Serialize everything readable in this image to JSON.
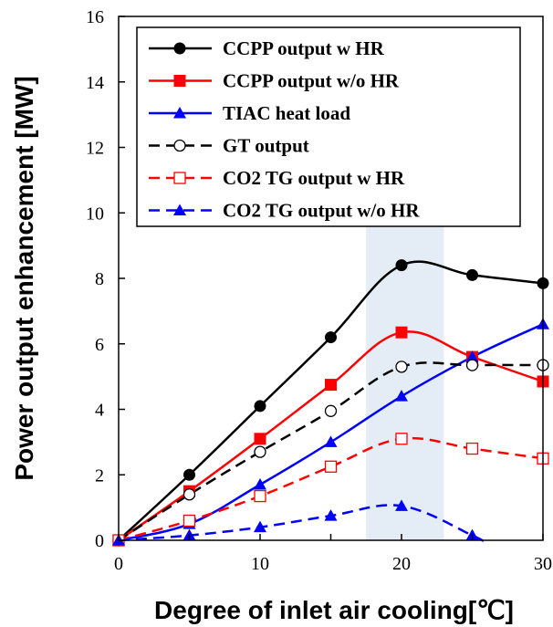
{
  "chart_data": {
    "type": "line",
    "xlabel": "Degree of inlet air cooling[℃]",
    "ylabel": "Power output enhancement [MW]",
    "xlim": [
      0,
      30
    ],
    "ylim": [
      0,
      16
    ],
    "xticks": [
      "0",
      "10",
      "20",
      "30"
    ],
    "yticks": [
      "0",
      "2",
      "4",
      "6",
      "8",
      "10",
      "12",
      "14",
      "16"
    ],
    "grid": false,
    "legend_position": "top",
    "highlight_band": [
      17.5,
      23
    ],
    "series": [
      {
        "name": "CCPP output w HR",
        "color": "#000000",
        "dash": "solid",
        "marker": "circle-filled",
        "x": [
          0,
          5,
          10,
          15,
          20,
          25,
          30
        ],
        "y": [
          0,
          2.0,
          4.1,
          6.2,
          8.4,
          8.1,
          7.85
        ]
      },
      {
        "name": "CCPP output w/o HR",
        "color": "#ff0000",
        "dash": "solid",
        "marker": "square-filled",
        "x": [
          0,
          5,
          10,
          15,
          20,
          25,
          30
        ],
        "y": [
          0,
          1.5,
          3.1,
          4.75,
          6.35,
          5.6,
          4.85
        ]
      },
      {
        "name": "TIAC heat load",
        "color": "#0000ff",
        "dash": "solid",
        "marker": "triangle-filled",
        "x": [
          0,
          5,
          10,
          15,
          20,
          25,
          30
        ],
        "y": [
          0,
          0.5,
          1.7,
          3.0,
          4.4,
          5.6,
          6.6
        ]
      },
      {
        "name": "GT output",
        "color": "#000000",
        "dash": "dashed",
        "marker": "circle-open",
        "x": [
          0,
          5,
          10,
          15,
          20,
          25,
          30
        ],
        "y": [
          0,
          1.4,
          2.7,
          3.95,
          5.3,
          5.35,
          5.35
        ]
      },
      {
        "name": "CO2 TG output w HR",
        "color": "#ff0000",
        "dash": "dashed",
        "marker": "square-open",
        "x": [
          0,
          5,
          10,
          15,
          20,
          25,
          30
        ],
        "y": [
          0,
          0.6,
          1.35,
          2.25,
          3.1,
          2.8,
          2.5
        ]
      },
      {
        "name": "CO2 TG output w/o HR",
        "color": "#0000ff",
        "dash": "dashed",
        "marker": "triangle-filled",
        "x": [
          0,
          5,
          10,
          15,
          20,
          25,
          26
        ],
        "y": [
          0,
          0.15,
          0.4,
          0.75,
          1.05,
          0.15,
          -0.1
        ]
      }
    ]
  }
}
